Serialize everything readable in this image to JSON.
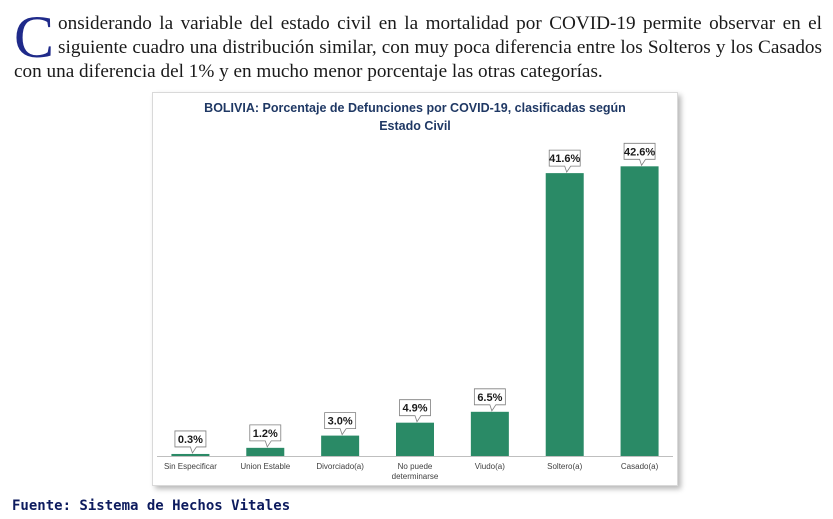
{
  "intro": {
    "dropcap": "C",
    "text": "onsiderando la variable del estado civil en la mortalidad por COVID-19 permite observar en el siguiente cuadro una distribución similar, con muy poca diferencia entre los Solteros y los Casados con una diferencia del 1% y en mucho menor porcentaje las otras categorías."
  },
  "chart_data": {
    "type": "bar",
    "title_line1": "BOLIVIA: Porcentaje de Defunciones por COVID-19, clasificadas según",
    "title_line2": "Estado Civil",
    "categories": [
      "Sin Especificar",
      "Union Estable",
      "Divorciado(a)",
      "No puede determinarse",
      "Viudo(a)",
      "Soltero(a)",
      "Casado(a)"
    ],
    "category_lines": [
      [
        "Sin Especificar"
      ],
      [
        "Union Estable"
      ],
      [
        "Divorciado(a)"
      ],
      [
        "No puede",
        "determinarse"
      ],
      [
        "Viudo(a)"
      ],
      [
        "Soltero(a)"
      ],
      [
        "Casado(a)"
      ]
    ],
    "values": [
      0.3,
      1.2,
      3.0,
      4.9,
      6.5,
      41.6,
      42.6
    ],
    "value_labels": [
      "0.3%",
      "1.2%",
      "3.0%",
      "4.9%",
      "6.5%",
      "41.6%",
      "42.6%"
    ],
    "ylim": [
      0,
      45
    ],
    "grid": false,
    "bar_color": "#2a8a66"
  },
  "source": "Fuente: Sistema de Hechos Vitales"
}
